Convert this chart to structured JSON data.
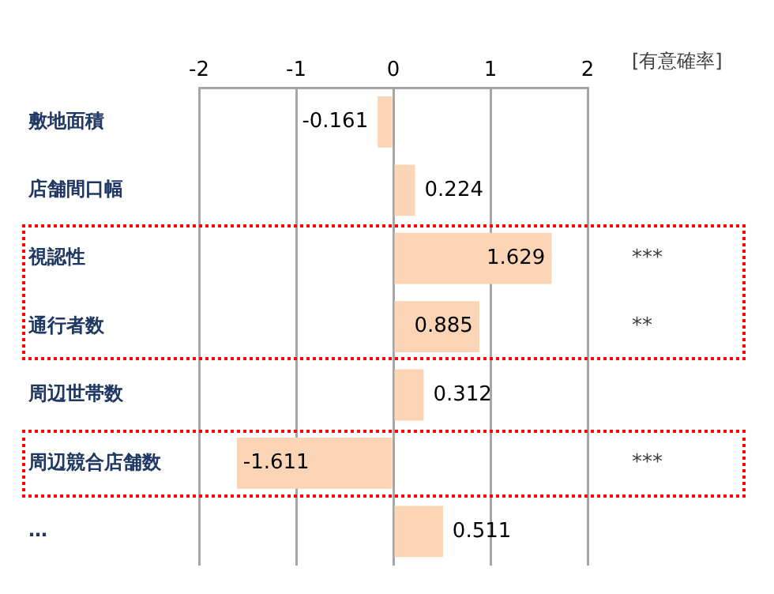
{
  "chart_data": {
    "type": "bar",
    "orientation": "horizontal",
    "categories": [
      "敷地面積",
      "店舗間口幅",
      "視認性",
      "通行者数",
      "周辺世帯数",
      "周辺競合店舗数",
      "…"
    ],
    "values": [
      -0.161,
      0.224,
      1.629,
      0.885,
      0.312,
      -1.611,
      0.511
    ],
    "color": "#fbd5b5",
    "xlim": [
      -2,
      2
    ],
    "xticks": [
      -2,
      -1,
      0,
      1,
      2
    ],
    "grid": "x",
    "legend": false,
    "data_labels": true,
    "annotations": [
      "[有意確率]",
      "***",
      "**",
      "***"
    ]
  }
}
